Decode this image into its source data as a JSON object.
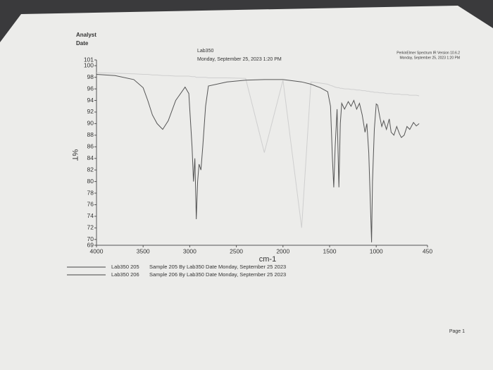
{
  "header": {
    "analyst": "Analyst",
    "date": "Date",
    "lab": "Lab350",
    "datetime": "Monday, September 25, 2023 1:20 PM",
    "software": "PerkinElmer Spectrum IR Version 10.6.2",
    "software_datetime": "Monday, September 25, 2023 1:20 PM"
  },
  "chart_data": {
    "type": "line",
    "xlabel": "cm-1",
    "ylabel": "%T",
    "x": [
      4000,
      3800,
      3600,
      3500,
      3450,
      3400,
      3350,
      3290,
      3230,
      3150,
      3050,
      3010,
      2975,
      2960,
      2945,
      2930,
      2915,
      2900,
      2880,
      2860,
      2830,
      2800,
      2600,
      2400,
      2200,
      2000,
      1800,
      1700,
      1600,
      1520,
      1490,
      1470,
      1455,
      1440,
      1420,
      1400,
      1385,
      1370,
      1340,
      1300,
      1270,
      1240,
      1210,
      1180,
      1150,
      1120,
      1100,
      1080,
      1060,
      1050,
      1040,
      1020,
      1000,
      985,
      960,
      940,
      920,
      890,
      860,
      840,
      810,
      780,
      750,
      730,
      700,
      670,
      640,
      600,
      570,
      540
    ],
    "series": [
      {
        "name": "Lab350 205",
        "color": "#555555",
        "values": [
          98.5,
          98.3,
          97.6,
          96.2,
          94,
          91.5,
          90,
          89,
          90.5,
          94,
          96.3,
          95.2,
          86,
          80,
          84,
          73.5,
          80,
          83,
          82,
          86,
          93,
          96.5,
          97.2,
          97.5,
          97.6,
          97.6,
          97.2,
          96.8,
          96.2,
          95.5,
          93,
          84,
          79,
          86,
          92.5,
          79,
          90,
          93.5,
          92.5,
          93.8,
          93,
          94,
          92.5,
          93.5,
          91.5,
          88.5,
          90,
          85,
          75,
          69.5,
          80,
          89,
          93.4,
          93.2,
          91,
          89.5,
          90.5,
          89,
          90.8,
          88.5,
          88,
          89.5,
          88.2,
          87.6,
          88,
          89.5,
          89,
          90.2,
          89.6,
          90
        ]
      },
      {
        "name": "Lab350 206",
        "color": "#cfcfcf",
        "values": [
          98.8,
          98.7,
          98.6,
          98.5,
          98.5,
          98.4,
          98.4,
          98.3,
          98.3,
          98.2,
          98.2,
          98.2,
          98.1,
          98.1,
          98.1,
          98,
          98,
          98,
          98,
          98,
          98,
          97.9,
          97.9,
          97.8,
          85,
          97.5,
          72,
          97.2,
          97,
          96.8,
          96.6,
          96.5,
          96.4,
          96.3,
          96.2,
          96.2,
          96.1,
          96.1,
          96,
          96,
          95.9,
          95.9,
          95.8,
          95.8,
          95.7,
          95.7,
          95.6,
          95.6,
          95.5,
          95.5,
          95.5,
          95.4,
          95.4,
          95.4,
          95.3,
          95.3,
          95.3,
          95.2,
          95.2,
          95.2,
          95.1,
          95.1,
          95.1,
          95,
          95,
          95,
          94.9,
          94.9,
          94.9,
          94.8
        ]
      }
    ],
    "legend_descriptions": [
      "Sample 205 By Lab350 Date Monday, September 25 2023",
      "Sample 206 By Lab350 Date Monday, September 25 2023"
    ],
    "xlim": [
      4000,
      450
    ],
    "xticks": [
      4000,
      3500,
      3000,
      2500,
      2000,
      1500,
      1000,
      450
    ],
    "ylim": [
      69,
      101
    ],
    "yticks": [
      69,
      70,
      72,
      74,
      76,
      78,
      80,
      82,
      84,
      86,
      88,
      90,
      92,
      94,
      96,
      98,
      100,
      101
    ],
    "grid": false
  },
  "footer": {
    "page": "Page 1"
  }
}
